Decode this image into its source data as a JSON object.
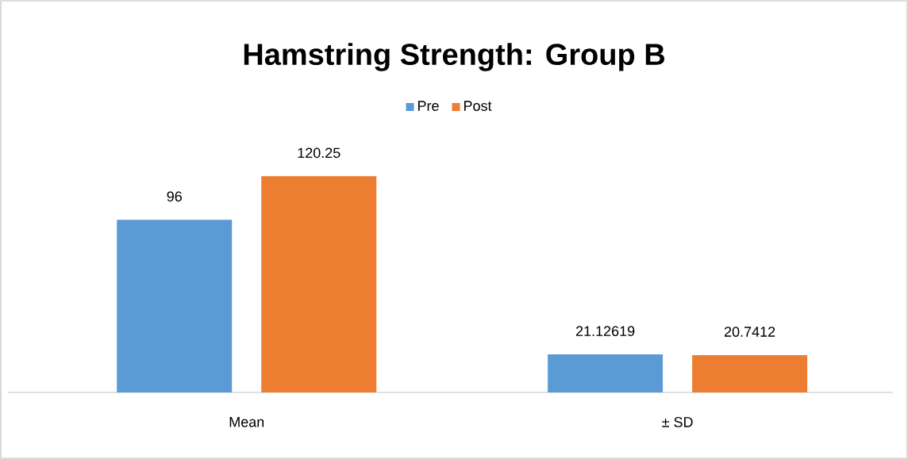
{
  "chart_data": {
    "type": "bar",
    "title": "Hamstring Strength: Group B",
    "categories": [
      "Mean",
      "± SD"
    ],
    "series": [
      {
        "name": "Pre",
        "color": "#5b9bd5",
        "values": [
          96,
          21.12619
        ]
      },
      {
        "name": "Post",
        "color": "#ed7d31",
        "values": [
          120.25,
          20.7412
        ]
      }
    ],
    "data_labels": true,
    "legend": "top"
  }
}
